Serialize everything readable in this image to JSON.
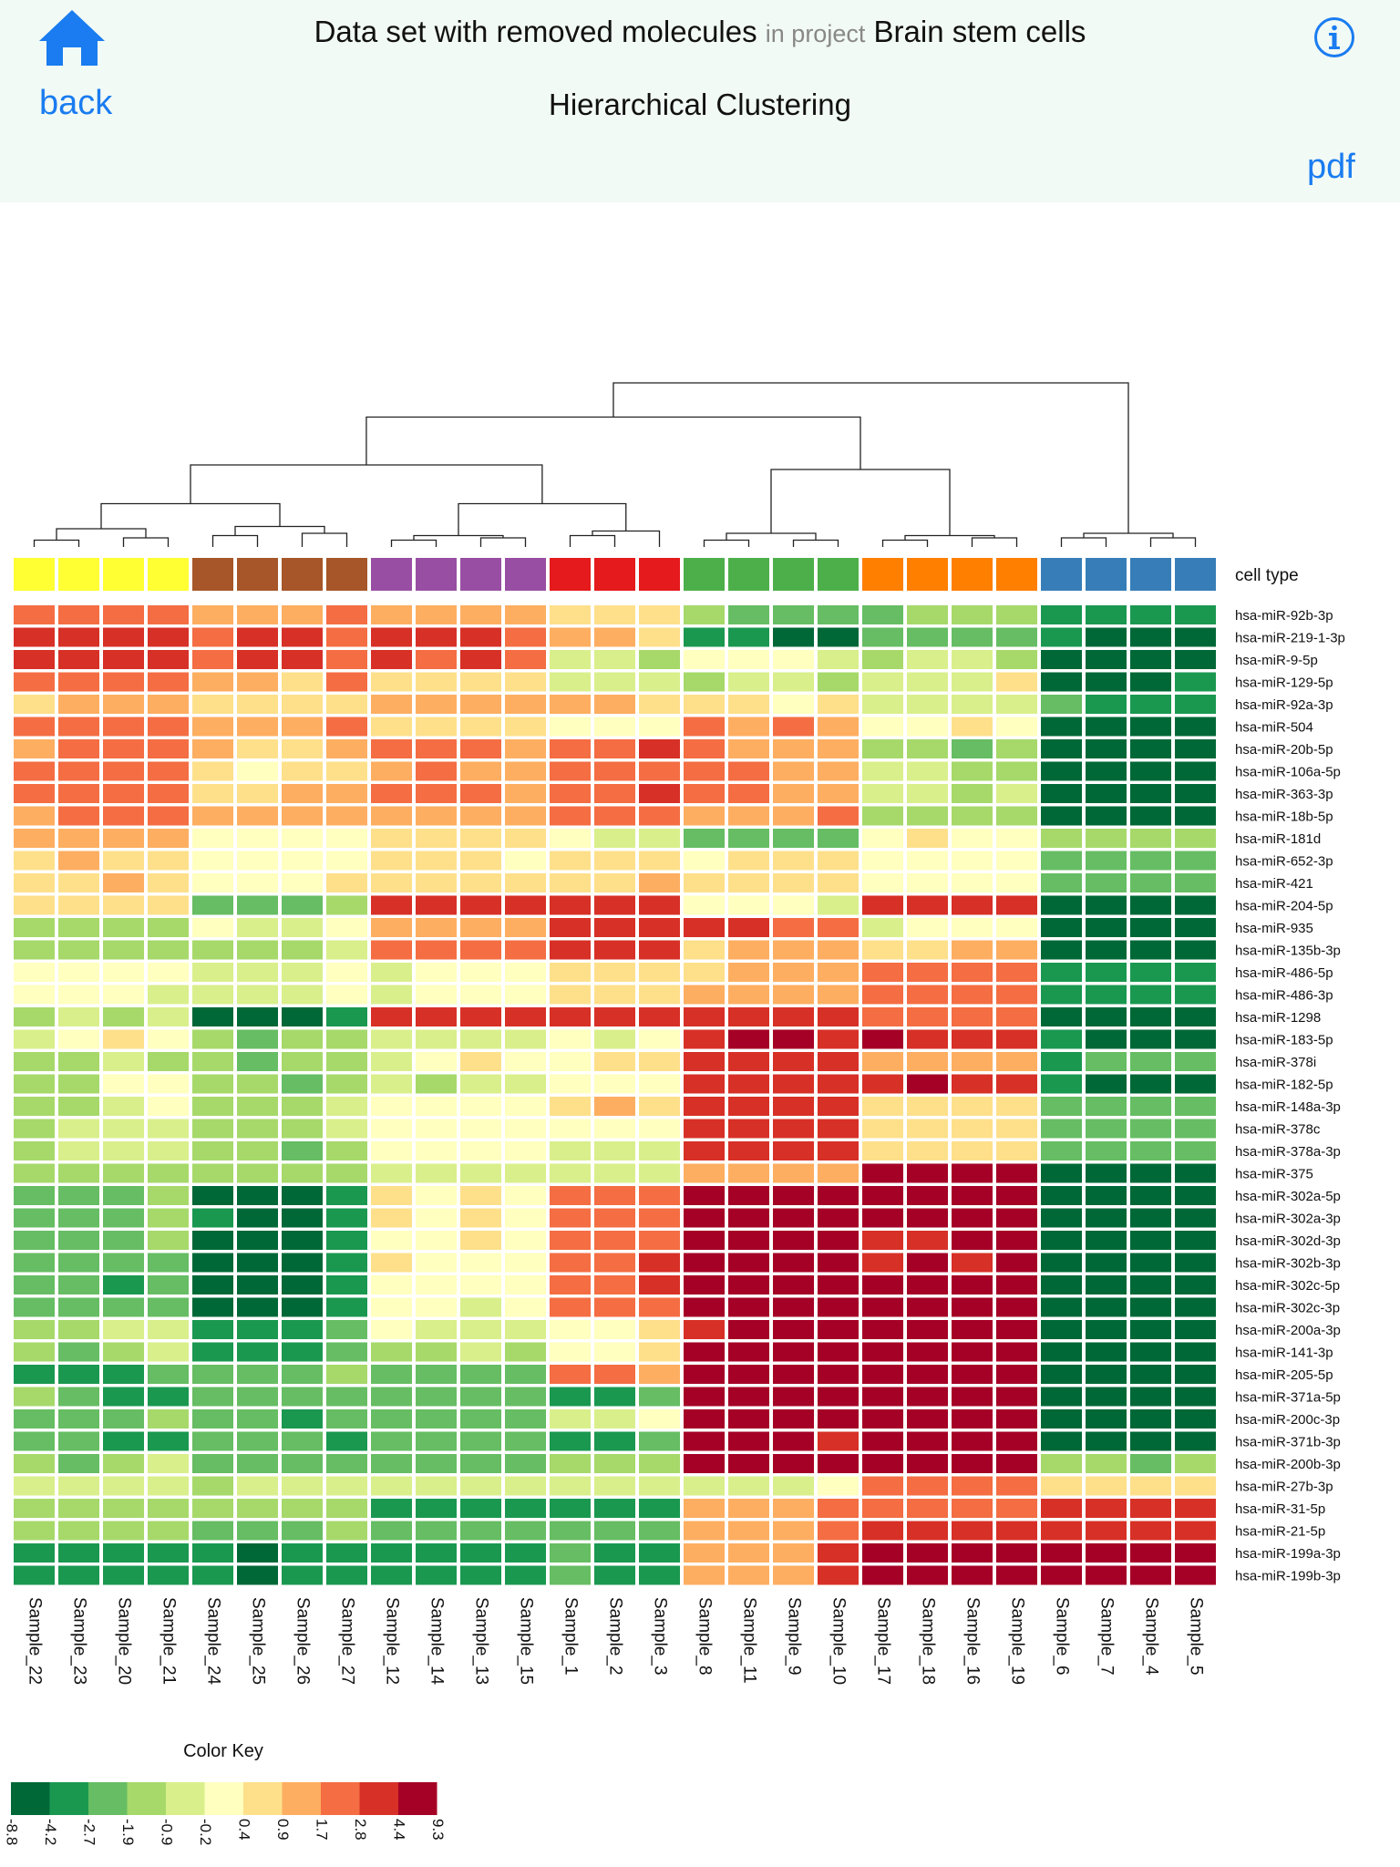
{
  "header": {
    "back_label": "back",
    "dataset_name": "Data set with removed molecules",
    "in_project_label": "in project",
    "project_name": "Brain stem cells",
    "subtitle": "Hierarchical Clustering",
    "pdf_label": "pdf",
    "icons": {
      "home": "home-icon",
      "info": "info-icon"
    },
    "accent_color": "#1a7cf0"
  },
  "chart_data": {
    "type": "heatmap",
    "title": "",
    "annotation_label": "cell type",
    "samples": [
      "Sample_22",
      "Sample_23",
      "Sample_20",
      "Sample_21",
      "Sample_24",
      "Sample_25",
      "Sample_26",
      "Sample_27",
      "Sample_12",
      "Sample_14",
      "Sample_13",
      "Sample_15",
      "Sample_1",
      "Sample_2",
      "Sample_3",
      "Sample_8",
      "Sample_11",
      "Sample_9",
      "Sample_10",
      "Sample_17",
      "Sample_18",
      "Sample_16",
      "Sample_19",
      "Sample_6",
      "Sample_7",
      "Sample_4",
      "Sample_5"
    ],
    "cell_type_colors": [
      "#ffff33",
      "#ffff33",
      "#ffff33",
      "#ffff33",
      "#a65628",
      "#a65628",
      "#a65628",
      "#a65628",
      "#984ea3",
      "#984ea3",
      "#984ea3",
      "#984ea3",
      "#e41a1c",
      "#e41a1c",
      "#e41a1c",
      "#4daf4a",
      "#4daf4a",
      "#4daf4a",
      "#4daf4a",
      "#ff7f00",
      "#ff7f00",
      "#ff7f00",
      "#ff7f00",
      "#377eb8",
      "#377eb8",
      "#377eb8",
      "#377eb8"
    ],
    "genes": [
      "hsa-miR-92b-3p",
      "hsa-miR-219-1-3p",
      "hsa-miR-9-5p",
      "hsa-miR-129-5p",
      "hsa-miR-92a-3p",
      "hsa-miR-504",
      "hsa-miR-20b-5p",
      "hsa-miR-106a-5p",
      "hsa-miR-363-3p",
      "hsa-miR-18b-5p",
      "hsa-miR-181d",
      "hsa-miR-652-3p",
      "hsa-miR-421",
      "hsa-miR-204-5p",
      "hsa-miR-935",
      "hsa-miR-135b-3p",
      "hsa-miR-486-5p",
      "hsa-miR-486-3p",
      "hsa-miR-1298",
      "hsa-miR-183-5p",
      "hsa-miR-378i",
      "hsa-miR-182-5p",
      "hsa-miR-148a-3p",
      "hsa-miR-378c",
      "hsa-miR-378a-3p",
      "hsa-miR-375",
      "hsa-miR-302a-5p",
      "hsa-miR-302a-3p",
      "hsa-miR-302d-3p",
      "hsa-miR-302b-3p",
      "hsa-miR-302c-5p",
      "hsa-miR-302c-3p",
      "hsa-miR-200a-3p",
      "hsa-miR-141-3p",
      "hsa-miR-205-5p",
      "hsa-miR-371a-5p",
      "hsa-miR-200c-3p",
      "hsa-miR-371b-3p",
      "hsa-miR-200b-3p",
      "hsa-miR-27b-3p",
      "hsa-miR-31-5p",
      "hsa-miR-21-5p",
      "hsa-miR-199a-3p",
      "hsa-miR-199b-3p"
    ],
    "color_key": {
      "label": "Color Key",
      "breaks": [
        "-8.8",
        "-4.2",
        "-2.7",
        "-1.9",
        "-0.9",
        "-0.2",
        "0.4",
        "0.9",
        "1.7",
        "2.8",
        "4.4",
        "9.3"
      ],
      "colors": [
        "#006837",
        "#1a9850",
        "#66bd63",
        "#a6d96a",
        "#d9ef8b",
        "#ffffbf",
        "#fee08b",
        "#fdae61",
        "#f46d43",
        "#d73027",
        "#a50026"
      ]
    },
    "values": [
      [
        8,
        8,
        8,
        8,
        7,
        7,
        7,
        8,
        7,
        7,
        7,
        7,
        6,
        6,
        6,
        3,
        2,
        2,
        2,
        2,
        3,
        3,
        3,
        1,
        1,
        1,
        1
      ],
      [
        9,
        9,
        9,
        9,
        8,
        9,
        9,
        8,
        9,
        9,
        9,
        8,
        7,
        7,
        6,
        1,
        1,
        0,
        0,
        2,
        2,
        2,
        2,
        1,
        0,
        0,
        0
      ],
      [
        9,
        9,
        9,
        9,
        8,
        9,
        9,
        8,
        9,
        8,
        9,
        8,
        4,
        4,
        3,
        5,
        5,
        5,
        4,
        3,
        4,
        4,
        3,
        0,
        0,
        0,
        0
      ],
      [
        8,
        8,
        8,
        8,
        7,
        7,
        6,
        8,
        6,
        6,
        6,
        6,
        4,
        4,
        4,
        3,
        4,
        4,
        3,
        4,
        4,
        4,
        6,
        0,
        0,
        0,
        1
      ],
      [
        6,
        7,
        7,
        7,
        6,
        6,
        6,
        6,
        7,
        7,
        7,
        7,
        7,
        7,
        6,
        6,
        6,
        5,
        6,
        4,
        4,
        4,
        4,
        2,
        1,
        1,
        1
      ],
      [
        8,
        8,
        8,
        8,
        7,
        7,
        7,
        8,
        6,
        6,
        6,
        6,
        5,
        5,
        5,
        8,
        7,
        8,
        7,
        5,
        5,
        6,
        5,
        0,
        0,
        0,
        0
      ],
      [
        7,
        8,
        8,
        8,
        7,
        6,
        6,
        7,
        8,
        8,
        8,
        7,
        8,
        8,
        9,
        8,
        7,
        7,
        7,
        3,
        3,
        2,
        3,
        0,
        0,
        0,
        0
      ],
      [
        8,
        8,
        8,
        8,
        6,
        5,
        6,
        6,
        7,
        8,
        7,
        7,
        8,
        8,
        8,
        8,
        8,
        7,
        7,
        4,
        4,
        3,
        3,
        0,
        0,
        0,
        0
      ],
      [
        8,
        8,
        8,
        8,
        6,
        6,
        7,
        7,
        8,
        8,
        8,
        7,
        8,
        8,
        9,
        8,
        8,
        7,
        7,
        4,
        4,
        3,
        4,
        0,
        0,
        0,
        0
      ],
      [
        7,
        8,
        8,
        8,
        7,
        7,
        7,
        7,
        7,
        7,
        7,
        7,
        8,
        8,
        8,
        7,
        7,
        7,
        8,
        3,
        3,
        3,
        3,
        0,
        0,
        0,
        0
      ],
      [
        7,
        7,
        7,
        7,
        5,
        5,
        5,
        5,
        6,
        6,
        6,
        6,
        5,
        4,
        4,
        2,
        2,
        2,
        2,
        5,
        6,
        5,
        5,
        3,
        3,
        3,
        3
      ],
      [
        6,
        7,
        6,
        6,
        5,
        5,
        5,
        5,
        6,
        6,
        6,
        5,
        6,
        6,
        6,
        5,
        6,
        6,
        6,
        5,
        5,
        5,
        5,
        2,
        2,
        2,
        2
      ],
      [
        6,
        6,
        7,
        6,
        5,
        5,
        5,
        6,
        6,
        6,
        6,
        6,
        6,
        6,
        7,
        6,
        6,
        6,
        6,
        5,
        5,
        5,
        5,
        2,
        2,
        2,
        2
      ],
      [
        6,
        6,
        6,
        6,
        2,
        2,
        2,
        3,
        9,
        9,
        9,
        9,
        9,
        9,
        9,
        5,
        5,
        5,
        4,
        9,
        9,
        9,
        9,
        0,
        0,
        0,
        0
      ],
      [
        3,
        3,
        3,
        3,
        5,
        4,
        4,
        5,
        7,
        7,
        7,
        7,
        9,
        9,
        9,
        9,
        9,
        8,
        8,
        4,
        5,
        5,
        5,
        0,
        0,
        0,
        0
      ],
      [
        3,
        3,
        3,
        3,
        3,
        3,
        3,
        4,
        8,
        8,
        8,
        8,
        9,
        9,
        9,
        6,
        7,
        7,
        7,
        6,
        6,
        7,
        7,
        0,
        0,
        0,
        0
      ],
      [
        5,
        5,
        5,
        5,
        4,
        4,
        4,
        5,
        4,
        5,
        5,
        5,
        6,
        6,
        6,
        6,
        7,
        7,
        7,
        8,
        8,
        8,
        8,
        1,
        1,
        1,
        1
      ],
      [
        5,
        5,
        5,
        4,
        4,
        4,
        4,
        5,
        4,
        5,
        5,
        5,
        6,
        6,
        6,
        7,
        7,
        7,
        7,
        8,
        8,
        8,
        8,
        1,
        1,
        1,
        1
      ],
      [
        3,
        4,
        3,
        4,
        0,
        0,
        0,
        1,
        9,
        9,
        9,
        9,
        9,
        9,
        9,
        9,
        9,
        9,
        9,
        8,
        8,
        8,
        8,
        0,
        0,
        0,
        0
      ],
      [
        4,
        5,
        6,
        5,
        3,
        2,
        3,
        3,
        4,
        4,
        4,
        4,
        5,
        4,
        5,
        9,
        10,
        10,
        9,
        10,
        9,
        9,
        9,
        1,
        0,
        0,
        0
      ],
      [
        3,
        3,
        4,
        3,
        3,
        2,
        3,
        3,
        4,
        5,
        6,
        5,
        5,
        6,
        6,
        9,
        9,
        9,
        9,
        7,
        7,
        7,
        7,
        1,
        2,
        2,
        2
      ],
      [
        3,
        3,
        5,
        5,
        3,
        3,
        2,
        3,
        4,
        3,
        4,
        4,
        5,
        5,
        5,
        9,
        9,
        9,
        9,
        9,
        10,
        9,
        9,
        1,
        0,
        0,
        0
      ],
      [
        3,
        3,
        4,
        5,
        3,
        3,
        3,
        4,
        5,
        5,
        5,
        5,
        6,
        7,
        6,
        9,
        9,
        9,
        9,
        6,
        6,
        6,
        6,
        2,
        2,
        2,
        2
      ],
      [
        3,
        4,
        4,
        4,
        3,
        3,
        3,
        4,
        5,
        5,
        5,
        5,
        5,
        5,
        5,
        9,
        9,
        9,
        9,
        6,
        6,
        6,
        6,
        2,
        2,
        2,
        2
      ],
      [
        3,
        4,
        4,
        4,
        3,
        3,
        2,
        3,
        5,
        5,
        5,
        5,
        4,
        4,
        4,
        9,
        9,
        9,
        9,
        6,
        6,
        6,
        6,
        2,
        2,
        2,
        2
      ],
      [
        3,
        3,
        3,
        3,
        3,
        3,
        3,
        3,
        4,
        4,
        4,
        4,
        4,
        4,
        4,
        7,
        7,
        7,
        7,
        10,
        10,
        10,
        10,
        0,
        0,
        0,
        0
      ],
      [
        2,
        2,
        2,
        3,
        0,
        0,
        0,
        1,
        6,
        5,
        6,
        5,
        8,
        8,
        8,
        10,
        10,
        10,
        10,
        10,
        10,
        10,
        10,
        0,
        0,
        0,
        0
      ],
      [
        2,
        2,
        2,
        3,
        1,
        0,
        0,
        1,
        6,
        5,
        6,
        5,
        8,
        8,
        8,
        10,
        10,
        10,
        10,
        10,
        10,
        10,
        10,
        0,
        0,
        0,
        0
      ],
      [
        2,
        2,
        2,
        3,
        0,
        0,
        0,
        1,
        5,
        5,
        6,
        5,
        8,
        8,
        8,
        10,
        10,
        10,
        10,
        9,
        9,
        10,
        10,
        0,
        0,
        0,
        0
      ],
      [
        2,
        2,
        2,
        2,
        0,
        0,
        0,
        1,
        6,
        5,
        5,
        5,
        8,
        8,
        9,
        10,
        10,
        10,
        10,
        9,
        10,
        9,
        10,
        0,
        0,
        0,
        0
      ],
      [
        2,
        2,
        1,
        2,
        0,
        0,
        0,
        1,
        5,
        5,
        5,
        5,
        8,
        8,
        9,
        10,
        10,
        10,
        10,
        10,
        10,
        10,
        10,
        0,
        0,
        0,
        0
      ],
      [
        2,
        2,
        2,
        2,
        0,
        0,
        0,
        1,
        5,
        5,
        4,
        5,
        8,
        8,
        8,
        10,
        10,
        10,
        10,
        10,
        10,
        10,
        10,
        0,
        0,
        0,
        0
      ],
      [
        3,
        3,
        4,
        4,
        1,
        1,
        1,
        2,
        5,
        4,
        4,
        4,
        5,
        5,
        6,
        9,
        10,
        10,
        10,
        10,
        10,
        10,
        10,
        0,
        0,
        0,
        0
      ],
      [
        3,
        2,
        3,
        4,
        1,
        1,
        1,
        2,
        3,
        3,
        4,
        3,
        5,
        5,
        6,
        10,
        10,
        10,
        10,
        10,
        10,
        10,
        10,
        0,
        0,
        0,
        0
      ],
      [
        1,
        1,
        1,
        2,
        2,
        2,
        2,
        3,
        2,
        2,
        2,
        2,
        8,
        8,
        7,
        10,
        10,
        10,
        10,
        10,
        10,
        10,
        10,
        0,
        0,
        0,
        0
      ],
      [
        3,
        2,
        1,
        1,
        2,
        2,
        2,
        2,
        2,
        2,
        2,
        2,
        1,
        1,
        2,
        10,
        10,
        10,
        10,
        10,
        10,
        10,
        10,
        0,
        0,
        0,
        0
      ],
      [
        2,
        2,
        2,
        3,
        2,
        2,
        1,
        2,
        2,
        2,
        2,
        2,
        4,
        4,
        5,
        10,
        10,
        10,
        10,
        10,
        10,
        10,
        10,
        0,
        0,
        0,
        0
      ],
      [
        2,
        2,
        1,
        1,
        2,
        2,
        2,
        1,
        2,
        2,
        2,
        2,
        1,
        1,
        2,
        10,
        10,
        10,
        9,
        10,
        10,
        10,
        10,
        0,
        0,
        0,
        0
      ],
      [
        3,
        2,
        3,
        4,
        2,
        2,
        2,
        2,
        2,
        2,
        2,
        2,
        3,
        3,
        3,
        10,
        10,
        10,
        10,
        10,
        10,
        10,
        10,
        3,
        3,
        2,
        3
      ],
      [
        4,
        4,
        4,
        4,
        3,
        4,
        4,
        4,
        4,
        4,
        4,
        4,
        4,
        4,
        4,
        4,
        4,
        4,
        5,
        8,
        8,
        8,
        8,
        6,
        6,
        6,
        6
      ],
      [
        3,
        3,
        3,
        3,
        3,
        3,
        3,
        3,
        1,
        1,
        1,
        1,
        1,
        1,
        1,
        7,
        7,
        7,
        8,
        8,
        8,
        8,
        8,
        9,
        9,
        9,
        9
      ],
      [
        3,
        3,
        3,
        3,
        2,
        2,
        2,
        3,
        2,
        2,
        2,
        2,
        2,
        2,
        2,
        7,
        7,
        7,
        8,
        9,
        9,
        9,
        9,
        9,
        9,
        9,
        9
      ],
      [
        1,
        1,
        1,
        1,
        1,
        0,
        1,
        1,
        1,
        1,
        1,
        1,
        2,
        1,
        1,
        7,
        7,
        7,
        9,
        10,
        10,
        10,
        10,
        10,
        10,
        10,
        10
      ],
      [
        1,
        1,
        1,
        1,
        1,
        0,
        1,
        1,
        1,
        1,
        1,
        1,
        2,
        1,
        1,
        7,
        7,
        7,
        9,
        10,
        10,
        10,
        10,
        10,
        10,
        10,
        10
      ]
    ],
    "dendrogram": [
      [
        0,
        1,
        0.03
      ],
      [
        2,
        3,
        0.04
      ],
      [
        -1,
        -2,
        0.08
      ],
      [
        4,
        5,
        0.05
      ],
      [
        6,
        7,
        0.06
      ],
      [
        -4,
        -5,
        0.09
      ],
      [
        -3,
        -6,
        0.19
      ],
      [
        8,
        9,
        0.03
      ],
      [
        10,
        11,
        0.04
      ],
      [
        -8,
        -9,
        0.05
      ],
      [
        12,
        13,
        0.05
      ],
      [
        14,
        -11,
        0.07
      ],
      [
        -10,
        -12,
        0.19
      ],
      [
        -7,
        -13,
        0.36
      ],
      [
        15,
        16,
        0.03
      ],
      [
        17,
        18,
        0.03
      ],
      [
        -15,
        -16,
        0.06
      ],
      [
        19,
        20,
        0.03
      ],
      [
        21,
        22,
        0.04
      ],
      [
        -18,
        -19,
        0.05
      ],
      [
        -17,
        -20,
        0.34
      ],
      [
        -14,
        -21,
        0.57
      ],
      [
        23,
        24,
        0.04
      ],
      [
        25,
        26,
        0.04
      ],
      [
        -23,
        -24,
        0.06
      ],
      [
        -22,
        -25,
        0.72
      ]
    ]
  }
}
